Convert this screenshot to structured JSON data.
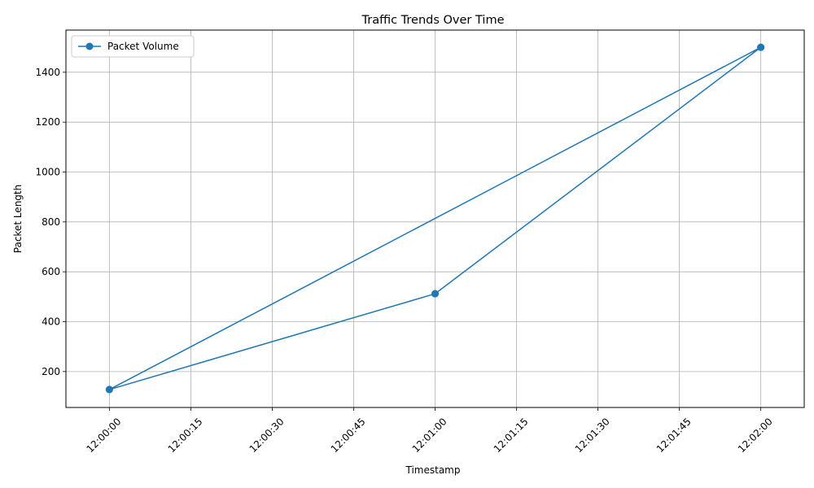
{
  "chart_data": {
    "type": "line",
    "title": "Traffic Trends Over Time",
    "xlabel": "Timestamp",
    "ylabel": "Packet Length",
    "x_ticks": [
      "12:00:00",
      "12:00:15",
      "12:00:30",
      "12:00:45",
      "12:01:00",
      "12:01:15",
      "12:01:30",
      "12:01:45",
      "12:02:00"
    ],
    "y_ticks": [
      200,
      400,
      600,
      800,
      1000,
      1200,
      1400
    ],
    "xlim": [
      "11:59:52",
      "12:02:08"
    ],
    "ylim": [
      56,
      1569
    ],
    "grid": true,
    "legend_position": "top-left",
    "series": [
      {
        "name": "Packet Volume",
        "color": "#1f77b4",
        "marker": "circle",
        "points": [
          {
            "x": "12:00:00",
            "y": 128
          },
          {
            "x": "12:01:00",
            "y": 512
          },
          {
            "x": "12:02:00",
            "y": 1500
          },
          {
            "x": "12:00:00",
            "y": 128
          },
          {
            "x": "12:01:00",
            "y": 512
          },
          {
            "x": "12:02:00",
            "y": 1500
          }
        ]
      }
    ]
  }
}
